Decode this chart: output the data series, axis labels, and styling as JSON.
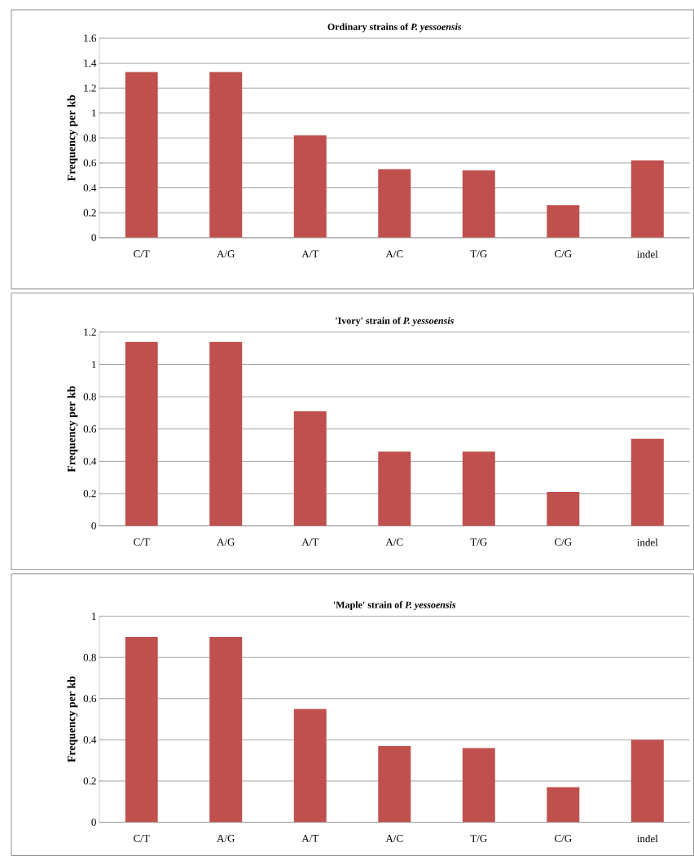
{
  "chart_data": [
    {
      "type": "bar",
      "title": "Ordinary strains of *P. yessoensis*",
      "ylabel": "Frequency per kb",
      "categories": [
        "C/T",
        "A/G",
        "A/T",
        "A/C",
        "T/G",
        "C/G",
        "indel"
      ],
      "values": [
        1.33,
        1.33,
        0.82,
        0.55,
        0.54,
        0.26,
        0.62
      ],
      "color": "#c0504d",
      "ylim": [
        0,
        1.6
      ],
      "yticks": [
        0,
        0.2,
        0.4,
        0.6,
        0.8,
        1,
        1.2,
        1.4,
        1.6
      ],
      "grid": "y"
    },
    {
      "type": "bar",
      "title": "'Ivory' strain of *P. yessoensis*",
      "ylabel": "Frequency per kb",
      "categories": [
        "C/T",
        "A/G",
        "A/T",
        "A/C",
        "T/G",
        "C/G",
        "indel"
      ],
      "values": [
        1.14,
        1.14,
        0.71,
        0.46,
        0.46,
        0.21,
        0.54
      ],
      "color": "#c0504d",
      "ylim": [
        0,
        1.2
      ],
      "yticks": [
        0,
        0.2,
        0.4,
        0.6,
        0.8,
        1,
        1.2
      ],
      "grid": "y"
    },
    {
      "type": "bar",
      "title": "'Maple' strain of *P. yessoensis*",
      "ylabel": "Frequency per kb",
      "categories": [
        "C/T",
        "A/G",
        "A/T",
        "A/C",
        "T/G",
        "C/G",
        "indel"
      ],
      "values": [
        0.9,
        0.9,
        0.55,
        0.37,
        0.36,
        0.17,
        0.4
      ],
      "color": "#c0504d",
      "ylim": [
        0,
        1
      ],
      "yticks": [
        0,
        0.2,
        0.4,
        0.6,
        0.8,
        1
      ],
      "grid": "y"
    }
  ]
}
